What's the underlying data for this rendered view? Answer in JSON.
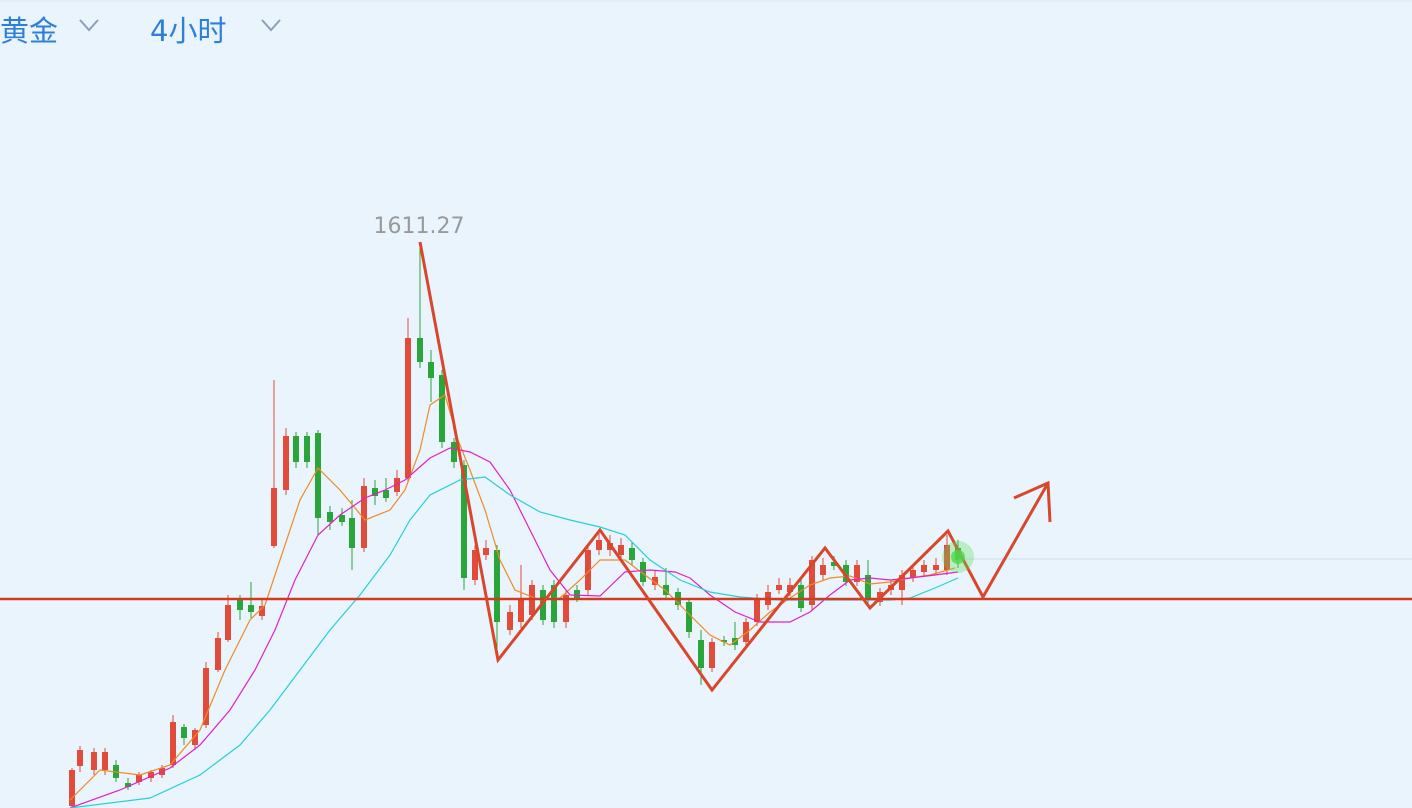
{
  "header": {
    "symbol": "黄金",
    "period": "4小时"
  },
  "chart": {
    "high_label": "1611.27"
  }
}
